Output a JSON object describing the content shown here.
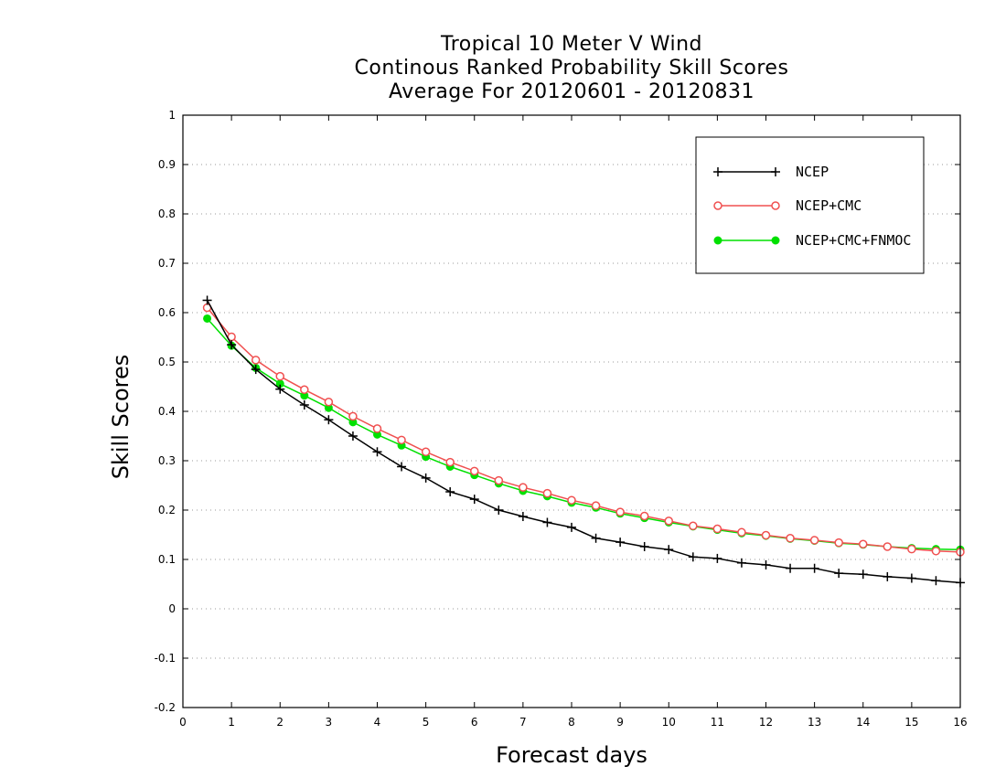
{
  "chart_data": {
    "type": "line",
    "title": "Tropical 10 Meter V Wind",
    "subtitle": "Continous Ranked Probability Skill Scores",
    "subtitle2": "Average For 20120601 - 20120831",
    "xlabel": "Forecast days",
    "ylabel": "Skill Scores",
    "xlim": [
      0,
      16
    ],
    "ylim": [
      -0.2,
      1
    ],
    "xticks": [
      "0",
      "1",
      "2",
      "3",
      "4",
      "5",
      "6",
      "7",
      "8",
      "9",
      "10",
      "11",
      "12",
      "13",
      "14",
      "15",
      "16"
    ],
    "yticks": [
      "-0.2",
      "-0.1",
      "0",
      "0.1",
      "0.2",
      "0.3",
      "0.4",
      "0.5",
      "0.6",
      "0.7",
      "0.8",
      "0.9",
      "1"
    ],
    "grid": "horizontal dotted",
    "legend_position": "top-right",
    "x": [
      0.5,
      1,
      1.5,
      2,
      2.5,
      3,
      3.5,
      4,
      4.5,
      5,
      5.5,
      6,
      6.5,
      7,
      7.5,
      8,
      8.5,
      9,
      9.5,
      10,
      10.5,
      11,
      11.5,
      12,
      12.5,
      13,
      13.5,
      14,
      14.5,
      15,
      15.5,
      16
    ],
    "series": [
      {
        "name": "NCEP",
        "color": "#000000",
        "marker": "plus",
        "values": [
          0.625,
          0.535,
          0.485,
          0.445,
          0.413,
          0.383,
          0.35,
          0.318,
          0.288,
          0.265,
          0.237,
          0.222,
          0.2,
          0.187,
          0.175,
          0.165,
          0.143,
          0.135,
          0.126,
          0.12,
          0.105,
          0.102,
          0.093,
          0.089,
          0.082,
          0.082,
          0.072,
          0.07,
          0.065,
          0.062,
          0.057,
          0.053
        ]
      },
      {
        "name": "NCEP+CMC",
        "color": "#f05050",
        "marker": "open-circle",
        "values": [
          0.61,
          0.551,
          0.504,
          0.471,
          0.444,
          0.419,
          0.39,
          0.365,
          0.342,
          0.318,
          0.297,
          0.279,
          0.26,
          0.246,
          0.234,
          0.22,
          0.209,
          0.196,
          0.188,
          0.178,
          0.168,
          0.162,
          0.155,
          0.149,
          0.143,
          0.139,
          0.134,
          0.131,
          0.126,
          0.121,
          0.117,
          0.115
        ]
      },
      {
        "name": "NCEP+CMC+FNMOC",
        "color": "#00e000",
        "marker": "filled-circle",
        "values": [
          0.588,
          0.533,
          0.488,
          0.456,
          0.432,
          0.407,
          0.378,
          0.353,
          0.331,
          0.308,
          0.288,
          0.271,
          0.254,
          0.239,
          0.228,
          0.215,
          0.205,
          0.193,
          0.184,
          0.175,
          0.167,
          0.16,
          0.153,
          0.148,
          0.142,
          0.138,
          0.133,
          0.13,
          0.126,
          0.123,
          0.121,
          0.12
        ]
      }
    ]
  }
}
